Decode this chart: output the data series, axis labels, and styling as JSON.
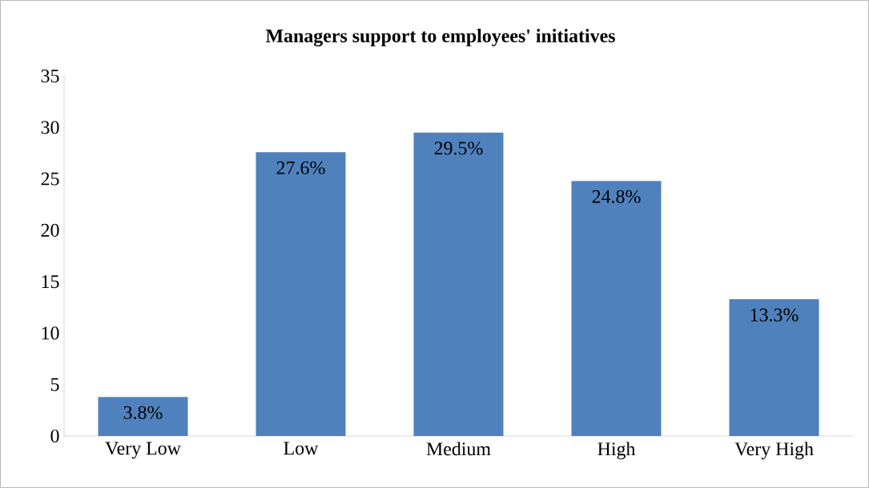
{
  "chart_data": {
    "type": "bar",
    "title": "Managers support to employees' initiatives",
    "categories": [
      "Very Low",
      "Low",
      "Medium",
      "High",
      "Very High"
    ],
    "values": [
      3.8,
      27.6,
      29.5,
      24.8,
      13.3
    ],
    "value_labels": [
      "3.8%",
      "27.6%",
      "29.5%",
      "24.8%",
      "13.3%"
    ],
    "color": "#4f81bd",
    "ylim": [
      0,
      35
    ],
    "yticks": [
      0,
      5,
      10,
      15,
      20,
      25,
      30,
      35
    ],
    "grid": false
  }
}
